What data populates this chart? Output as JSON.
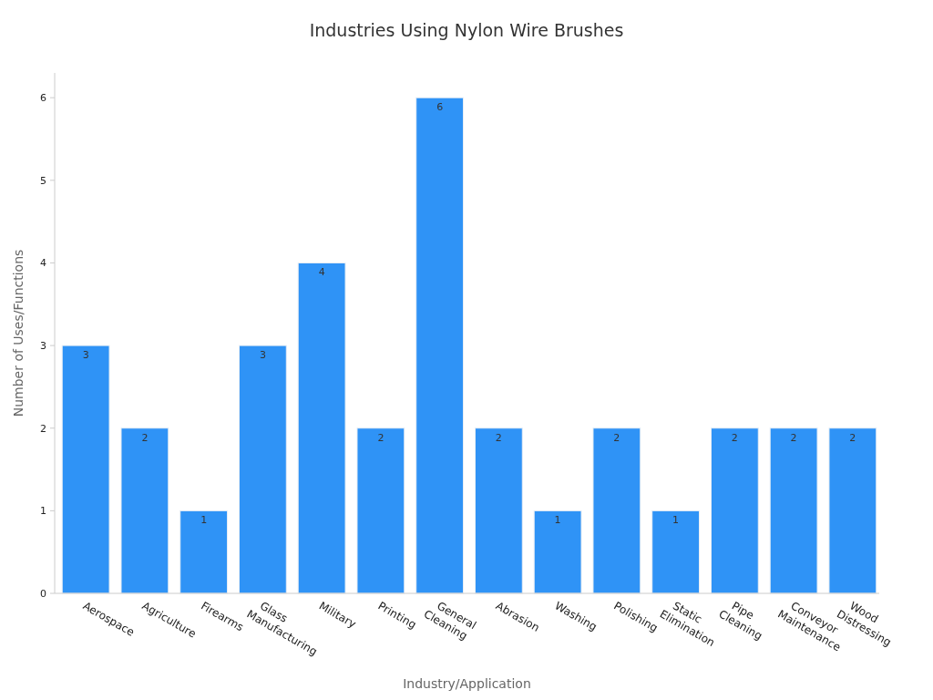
{
  "chart_data": {
    "type": "bar",
    "title": "Industries Using Nylon Wire Brushes",
    "xlabel": "Industry/Application",
    "ylabel": "Number of Uses/Functions",
    "categories": [
      "Aerospace",
      "Agriculture",
      "Firearms",
      "Glass Manufacturing",
      "Military",
      "Printing",
      "General Cleaning",
      "Abrasion",
      "Washing",
      "Polishing",
      "Static Elimination",
      "Pipe Cleaning",
      "Conveyor Maintenance",
      "Wood Distressing"
    ],
    "values": [
      3,
      2,
      1,
      3,
      4,
      2,
      6,
      2,
      1,
      2,
      1,
      2,
      2,
      2
    ],
    "color": "#2f93f6",
    "ylim": [
      0,
      6.3
    ],
    "yticks": [
      0,
      1,
      2,
      3,
      4,
      5,
      6
    ],
    "data_labels": true,
    "grid": false
  }
}
